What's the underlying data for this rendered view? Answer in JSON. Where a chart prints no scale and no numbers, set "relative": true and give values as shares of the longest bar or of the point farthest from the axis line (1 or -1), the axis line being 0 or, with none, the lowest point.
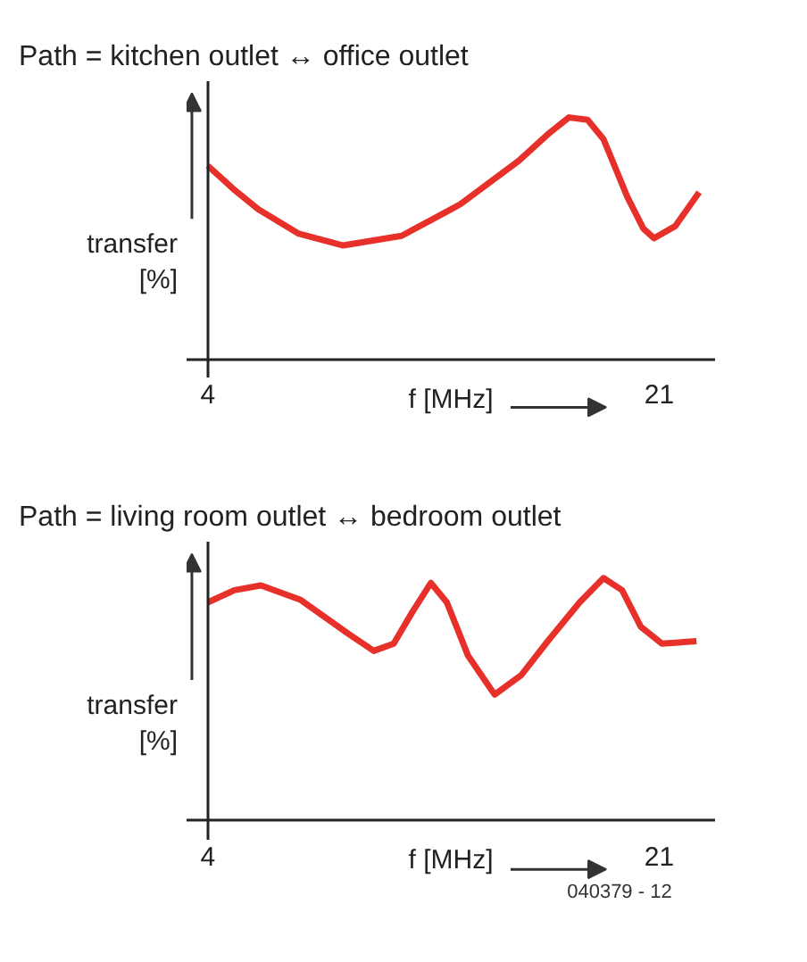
{
  "chart_data": [
    {
      "type": "line",
      "title": "Path = kitchen outlet ↔ office outlet",
      "xlabel": "f [MHz]",
      "ylabel": "transfer\n[%]",
      "relative": true,
      "xlim": [
        3.2,
        23.1
      ],
      "xticks": [
        4,
        21
      ],
      "tick_labels": "x",
      "series": [
        {
          "color": "#e8302a",
          "x": [
            4,
            5.0,
            5.9,
            7.4,
            9.1,
            11.3,
            13.5,
            15.7,
            16.8,
            17.6,
            18.3,
            18.9,
            19.8,
            20.4,
            20.8,
            21.6,
            22.5
          ],
          "values": [
            0.8,
            0.7,
            0.62,
            0.52,
            0.47,
            0.51,
            0.64,
            0.82,
            0.93,
            1.0,
            0.99,
            0.91,
            0.67,
            0.54,
            0.5,
            0.55,
            0.69
          ]
        }
      ]
    },
    {
      "type": "line",
      "title": "Path = living room outlet ↔ bedroom outlet",
      "xlabel": "f [MHz]",
      "ylabel": "transfer\n[%]",
      "relative": true,
      "xlim": [
        3.2,
        23.1
      ],
      "xticks": [
        4,
        21
      ],
      "tick_labels": "x",
      "annotations": [
        "040379 - 12"
      ],
      "series": [
        {
          "color": "#e8302a",
          "x": [
            4,
            5.0,
            6.0,
            7.5,
            9.3,
            10.25,
            11.0,
            11.7,
            12.4,
            13.0,
            13.8,
            14.8,
            15.8,
            16.8,
            18.0,
            18.9,
            19.6,
            20.3,
            21.1,
            22.4
          ],
          "values": [
            0.9,
            0.95,
            0.97,
            0.91,
            0.77,
            0.7,
            0.73,
            0.86,
            0.98,
            0.9,
            0.68,
            0.52,
            0.6,
            0.74,
            0.9,
            1.0,
            0.95,
            0.8,
            0.73,
            0.74
          ]
        }
      ]
    }
  ]
}
